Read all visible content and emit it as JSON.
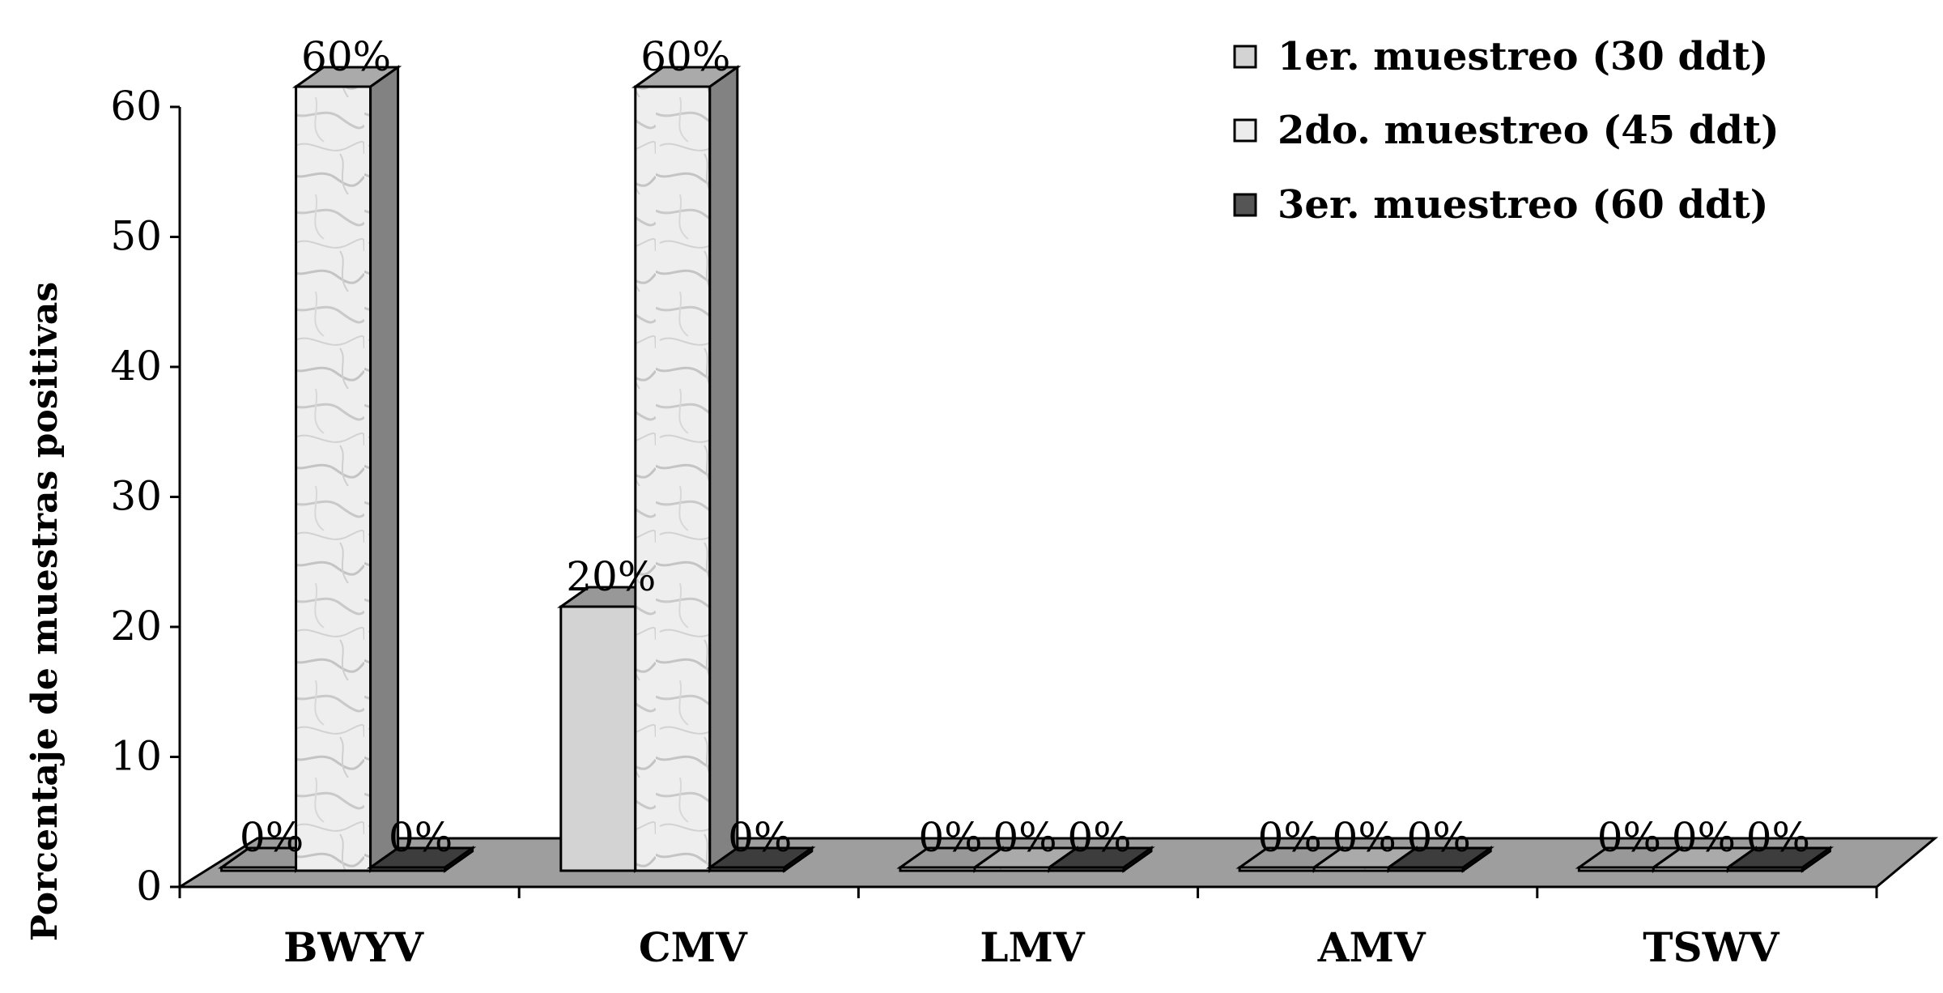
{
  "chart_data": {
    "type": "bar",
    "ylabel": "Porcentaje de muestras positivas",
    "ylim": [
      0,
      60
    ],
    "yticks": [
      0,
      10,
      20,
      30,
      40,
      50,
      60
    ],
    "categories": [
      "BWYV",
      "CMV",
      "LMV",
      "AMV",
      "TSWV"
    ],
    "series": [
      {
        "name": "1er. muestreo (30 ddt)",
        "values": [
          0,
          20,
          0,
          0,
          0
        ],
        "labels": [
          "0%",
          "20%",
          "0%",
          "0%",
          "0%"
        ],
        "color": "#d3d3d3"
      },
      {
        "name": "2do. muestreo (45 ddt)",
        "values": [
          60,
          60,
          0,
          0,
          0
        ],
        "labels": [
          "60%",
          "60%",
          "0%",
          "0%",
          "0%"
        ],
        "color": "#ececec",
        "pattern": "marble"
      },
      {
        "name": "3er. muestreo (60 ddt)",
        "values": [
          0,
          0,
          0,
          0,
          0
        ],
        "labels": [
          "0%",
          "0%",
          "0%",
          "0%",
          "0%"
        ],
        "color": "#555555"
      }
    ],
    "legend": "top-right",
    "grid": false,
    "style": "3d-clustered-bar"
  }
}
